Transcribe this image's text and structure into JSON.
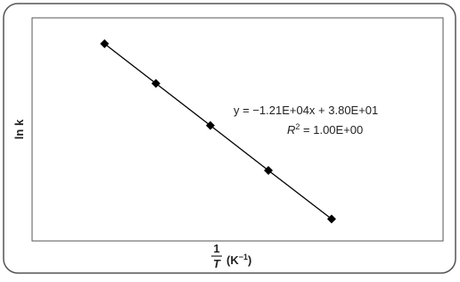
{
  "chart_data": {
    "type": "scatter",
    "x_label": {
      "numerator": "1",
      "denominator": "T",
      "unit": "(K",
      "unit_exp": "−1",
      "unit_close": ")"
    },
    "y_label": "ln k",
    "annotation": {
      "equation": "y = −1.21E+04x + 3.80E+01",
      "r2_symbol": "R",
      "r2_exp": "2",
      "r2_rest": " = 1.00E+00"
    },
    "x": [
      0.002941,
      0.003041,
      0.003147,
      0.00326,
      0.003383
    ],
    "series": [
      {
        "color": "#000000",
        "values": [
          2.41,
          1.2,
          -0.08,
          -1.45,
          -2.93
        ]
      }
    ],
    "xlim": [
      0.0028,
      0.0036
    ],
    "ylim": [
      -3.6,
      3.2
    ],
    "trendline": true
  }
}
